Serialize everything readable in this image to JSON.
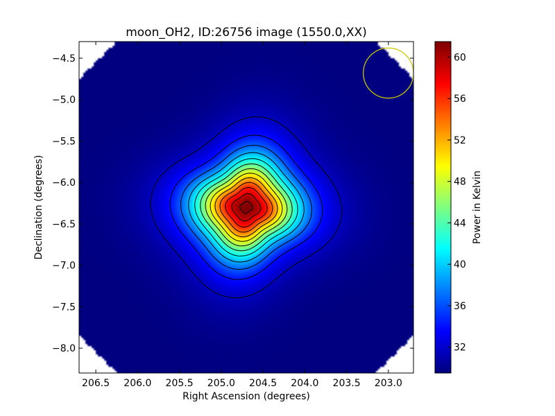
{
  "chart_data": {
    "type": "heatmap",
    "title": "moon_OH2, ID:26756 image (1550.0,XX)",
    "xlabel": "Right Ascension (degrees)",
    "ylabel": "Declination (degrees)",
    "colorbar_label": "Power in Kelvin",
    "colormap": "jet",
    "xlim": [
      206.7,
      202.7
    ],
    "ylim": [
      -8.3,
      -4.3
    ],
    "x_ticks": [
      206.5,
      206.0,
      205.5,
      205.0,
      204.5,
      204.0,
      203.5,
      203.0
    ],
    "x_tick_labels": [
      "206.5",
      "206.0",
      "205.5",
      "205.0",
      "204.5",
      "204.0",
      "203.5",
      "203.0"
    ],
    "y_ticks": [
      -4.5,
      -5.0,
      -5.5,
      -6.0,
      -6.5,
      -7.0,
      -7.5,
      -8.0
    ],
    "y_tick_labels": [
      "−4.5",
      "−5.0",
      "−5.5",
      "−6.0",
      "−6.5",
      "−7.0",
      "−7.5",
      "−8.0"
    ],
    "colorbar_range": [
      29.5,
      61.5
    ],
    "colorbar_ticks": [
      32,
      36,
      40,
      44,
      48,
      52,
      56,
      60
    ],
    "colorbar_tick_labels": [
      "32",
      "36",
      "40",
      "44",
      "48",
      "52",
      "56",
      "60"
    ],
    "peak": {
      "ra": 204.7,
      "dec": -6.3,
      "value": 61.5
    },
    "background_value": 29.5,
    "contour_levels": [
      31.5,
      34,
      36.5,
      39,
      41.5,
      44,
      46.5,
      49,
      51.5,
      54,
      56.5,
      59,
      61
    ],
    "beam_circle": {
      "ra": 203.0,
      "dec": -4.68,
      "radius_deg": 0.3,
      "color": "#c8c800"
    },
    "grid": false
  }
}
